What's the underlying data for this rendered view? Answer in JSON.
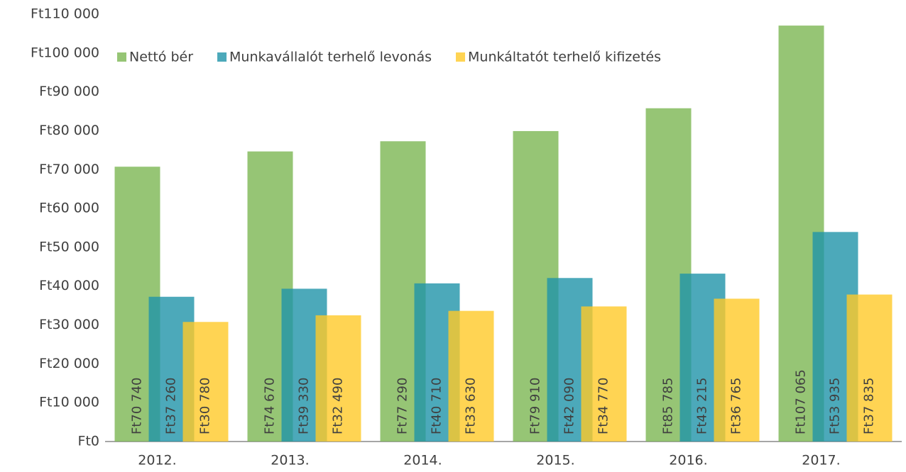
{
  "chart_data": {
    "type": "bar",
    "categories": [
      "2012.",
      "2013.",
      "2014.",
      "2015.",
      "2016.",
      "2017."
    ],
    "series": [
      {
        "name": "Nettó bér",
        "color": "#7cb652",
        "values": [
          70740,
          74670,
          77290,
          79910,
          85785,
          107065
        ],
        "value_labels": [
          "Ft70 740",
          "Ft74 670",
          "Ft77 290",
          "Ft79 910",
          "Ft85 785",
          "Ft107 065"
        ]
      },
      {
        "name": "Munkavállalót terhelő levonás",
        "color": "#1f93a9",
        "values": [
          37260,
          39330,
          40710,
          42090,
          43215,
          53935
        ],
        "value_labels": [
          "Ft37 260",
          "Ft39 330",
          "Ft40 710",
          "Ft42 090",
          "Ft43 215",
          "Ft53 935"
        ]
      },
      {
        "name": "Munkáltatót terhelő kifizetés",
        "color": "#ffc928",
        "values": [
          30780,
          32490,
          33630,
          34770,
          36765,
          37835
        ],
        "value_labels": [
          "Ft30 780",
          "Ft32 490",
          "Ft33 630",
          "Ft34 770",
          "Ft36 765",
          "Ft37 835"
        ]
      }
    ],
    "ylim": [
      0,
      110000
    ],
    "yticks": [
      {
        "value": 0,
        "label": "Ft0"
      },
      {
        "value": 10000,
        "label": "Ft10 000"
      },
      {
        "value": 20000,
        "label": "Ft20 000"
      },
      {
        "value": 30000,
        "label": "Ft30 000"
      },
      {
        "value": 40000,
        "label": "Ft40 000"
      },
      {
        "value": 50000,
        "label": "Ft50 000"
      },
      {
        "value": 60000,
        "label": "Ft60 000"
      },
      {
        "value": 70000,
        "label": "Ft70 000"
      },
      {
        "value": 80000,
        "label": "Ft80 000"
      },
      {
        "value": 90000,
        "label": "Ft90 000"
      },
      {
        "value": 100000,
        "label": "Ft100 000"
      },
      {
        "value": 110000,
        "label": "Ft110 000"
      }
    ],
    "grid": false,
    "legend": "top-left"
  }
}
